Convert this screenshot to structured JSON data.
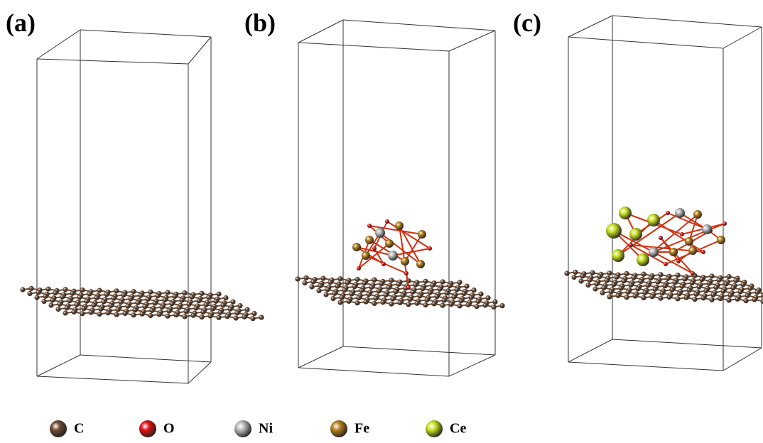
{
  "panels": [
    {
      "label": "(a)"
    },
    {
      "label": "(b)"
    },
    {
      "label": "(c)"
    }
  ],
  "legend": [
    {
      "label": "C",
      "color": "#6b4a33"
    },
    {
      "label": "O",
      "color": "#e01010"
    },
    {
      "label": "Ni",
      "color": "#b8b8b8"
    },
    {
      "label": "Fe",
      "color": "#b5801c"
    },
    {
      "label": "Ce",
      "color": "#c8e020"
    }
  ]
}
